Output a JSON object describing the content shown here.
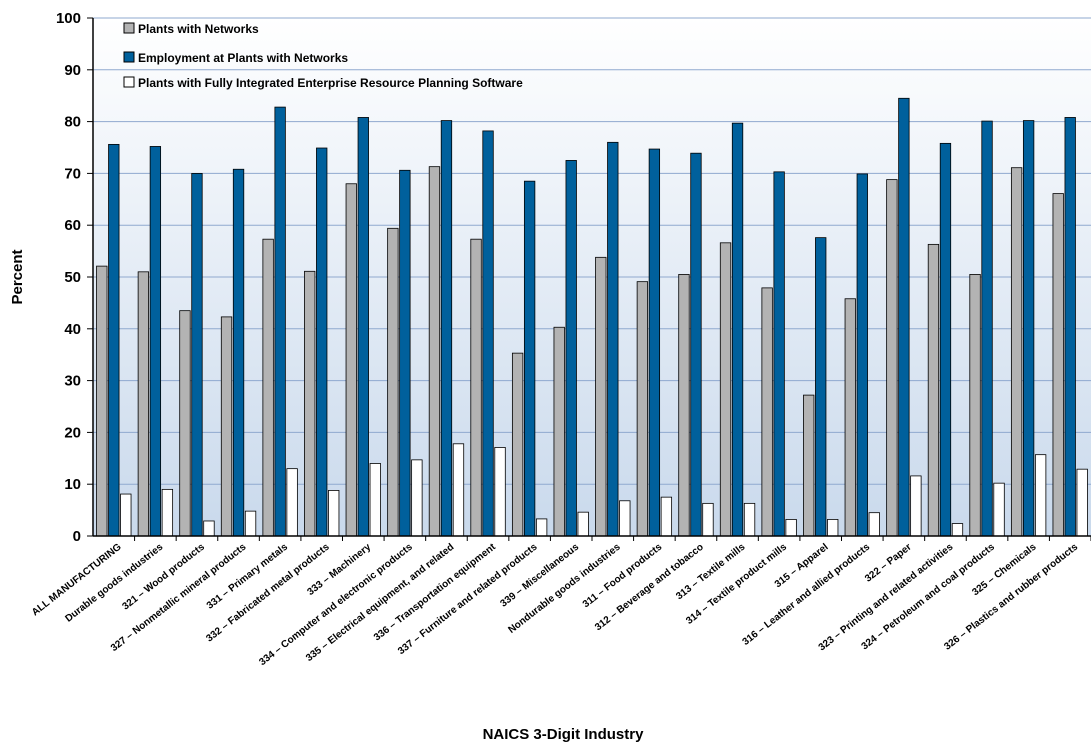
{
  "chart_data": {
    "type": "bar",
    "title": "",
    "xlabel": "NAICS 3-Digit Industry",
    "ylabel": "Percent",
    "ylim": [
      0,
      100
    ],
    "yticks": [
      0,
      10,
      20,
      30,
      40,
      50,
      60,
      70,
      80,
      90,
      100
    ],
    "grid": true,
    "legend_position": "top-left",
    "categories": [
      "ALL MANUFACTURING",
      "Durable goods industries",
      "321 – Wood products",
      "327 – Nonmetallic mineral products",
      "331 – Primary metals",
      "332 – Fabricated metal products",
      "333 – Machinery",
      "334 – Computer and electronic products",
      "335 – Electrical equipment, and related",
      "336 – Transportation equipment",
      "337 – Furniture and related products",
      "339 – Miscellaneous",
      "Nondurable goods industries",
      "311 – Food products",
      "312 – Beverage and tobacco",
      "313 – Textile mills",
      "314 – Textile product mills",
      "315 – Apparel",
      "316 – Leather and allied products",
      "322 – Paper",
      "323 – Printing and related activities",
      "324 – Petroleum and coal products",
      "325 – Chemicals",
      "326 – Plastics and rubber products"
    ],
    "series": [
      {
        "name": "Plants with Networks",
        "color": "#b3b3b3",
        "values": [
          52.1,
          51.0,
          43.5,
          42.3,
          57.3,
          51.1,
          68.0,
          59.4,
          71.3,
          57.3,
          35.3,
          40.3,
          53.8,
          49.1,
          50.5,
          56.6,
          47.9,
          27.2,
          45.8,
          68.8,
          56.3,
          50.5,
          71.1,
          66.1
        ]
      },
      {
        "name": "Employment at Plants with Networks",
        "color": "#00609c",
        "values": [
          75.6,
          75.2,
          70.0,
          70.8,
          82.8,
          74.9,
          80.8,
          70.6,
          80.2,
          78.2,
          68.5,
          72.5,
          76.0,
          74.7,
          73.9,
          79.7,
          70.3,
          57.6,
          69.9,
          84.5,
          75.8,
          80.1,
          80.2,
          80.8
        ]
      },
      {
        "name": "Plants with Fully Integrated Enterprise Resource Planning Software",
        "color": "#ffffff",
        "values": [
          8.1,
          9.0,
          2.9,
          4.8,
          13.0,
          8.8,
          14.0,
          14.7,
          17.8,
          17.1,
          3.3,
          4.6,
          6.8,
          7.5,
          6.3,
          6.3,
          3.2,
          3.2,
          4.5,
          11.6,
          2.4,
          10.2,
          15.7,
          12.9
        ]
      }
    ]
  }
}
